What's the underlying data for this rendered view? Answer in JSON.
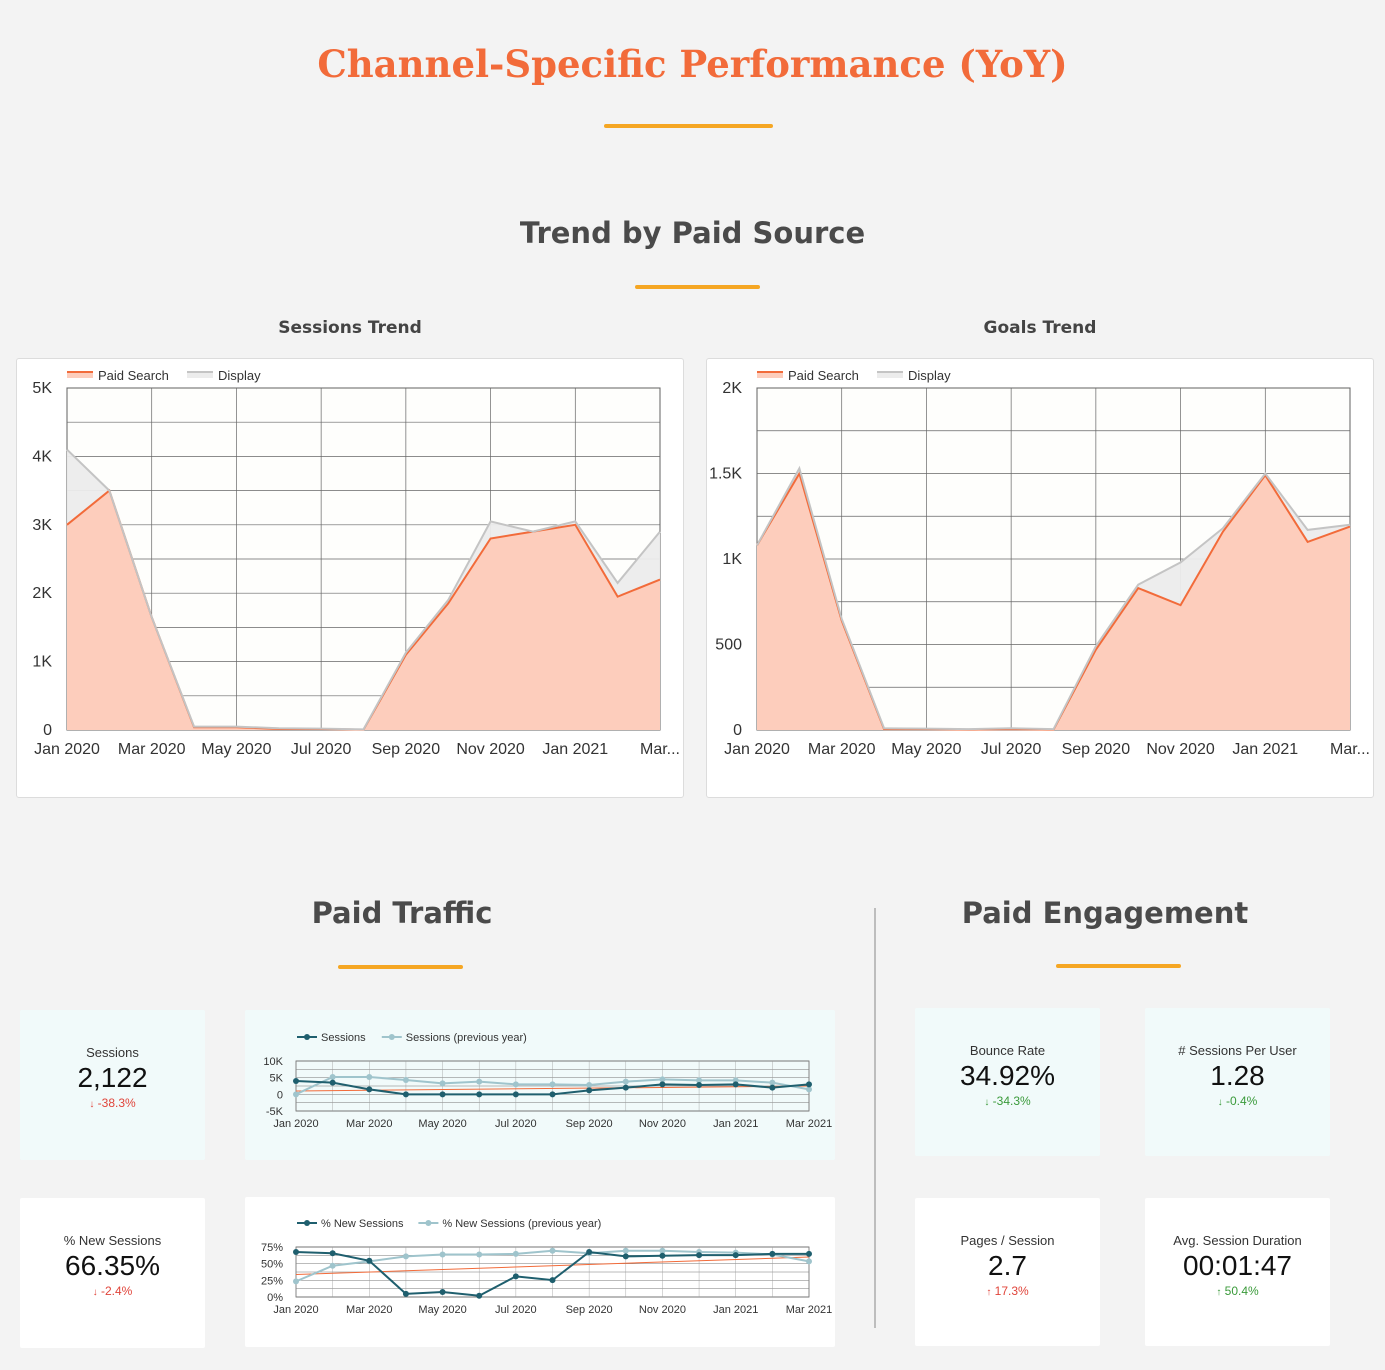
{
  "page": {
    "title": "Channel-Specific Performance (YoY)",
    "section_trend": "Trend by Paid Source",
    "section_traffic": "Paid Traffic",
    "section_engagement": "Paid Engagement"
  },
  "colors": {
    "accent": "#f26b3a",
    "underline": "#f5a623",
    "series_primary": "#1f5f6e",
    "series_prev": "#9fc4cc"
  },
  "kpis": {
    "sessions": {
      "label": "Sessions",
      "value": "2,122",
      "change": "-38.3%",
      "arrow": "↓"
    },
    "new_sessions": {
      "label": "% New Sessions",
      "value": "66.35%",
      "change": "-2.4%",
      "arrow": "↓"
    },
    "bounce_rate": {
      "label": "Bounce Rate",
      "value": "34.92%",
      "change": "-34.3%",
      "arrow": "↓"
    },
    "sessions_per_user": {
      "label": "# Sessions Per User",
      "value": "1.28",
      "change": "-0.4%",
      "arrow": "↓"
    },
    "pages_session": {
      "label": "Pages / Session",
      "value": "2.7",
      "change": "17.3%",
      "arrow": "↑"
    },
    "avg_duration": {
      "label": "Avg. Session Duration",
      "value": "00:01:47",
      "change": "50.4%",
      "arrow": "↑"
    }
  },
  "chart_data": [
    {
      "id": "sessions_trend",
      "type": "area",
      "title": "Sessions Trend",
      "x": [
        "Jan 2020",
        "Feb 2020",
        "Mar 2020",
        "Apr 2020",
        "May 2020",
        "Jun 2020",
        "Jul 2020",
        "Aug 2020",
        "Sep 2020",
        "Oct 2020",
        "Nov 2020",
        "Dec 2020",
        "Jan 2021",
        "Feb 2021",
        "Mar 2021"
      ],
      "xticks": [
        "Jan 2020",
        "Mar 2020",
        "May 2020",
        "Jul 2020",
        "Sep 2020",
        "Nov 2020",
        "Jan 2021",
        "Mar..."
      ],
      "yticks": [
        "0",
        "1K",
        "2K",
        "3K",
        "4K",
        "5K"
      ],
      "ylim": [
        0,
        5000
      ],
      "series": [
        {
          "name": "Paid Search",
          "values": [
            3000,
            3500,
            1650,
            40,
            40,
            15,
            15,
            5,
            1100,
            1850,
            2800,
            2900,
            3000,
            1950,
            2200
          ]
        },
        {
          "name": "Display",
          "values": [
            4100,
            3500,
            1650,
            50,
            50,
            25,
            20,
            10,
            1130,
            1900,
            3050,
            2900,
            3050,
            2150,
            2900
          ]
        }
      ]
    },
    {
      "id": "goals_trend",
      "type": "area",
      "title": "Goals Trend",
      "x": [
        "Jan 2020",
        "Feb 2020",
        "Mar 2020",
        "Apr 2020",
        "May 2020",
        "Jun 2020",
        "Jul 2020",
        "Aug 2020",
        "Sep 2020",
        "Oct 2020",
        "Nov 2020",
        "Dec 2020",
        "Jan 2021",
        "Feb 2021",
        "Mar 2021"
      ],
      "xticks": [
        "Jan 2020",
        "Mar 2020",
        "May 2020",
        "Jul 2020",
        "Sep 2020",
        "Nov 2020",
        "Jan 2021",
        "Mar..."
      ],
      "yticks": [
        "0",
        "500",
        "1K",
        "1.5K",
        "2K"
      ],
      "ylim": [
        0,
        2000
      ],
      "series": [
        {
          "name": "Paid Search",
          "values": [
            1080,
            1500,
            640,
            5,
            5,
            2,
            5,
            2,
            470,
            830,
            730,
            1160,
            1490,
            1100,
            1190
          ]
        },
        {
          "name": "Display",
          "values": [
            1080,
            1530,
            650,
            10,
            8,
            5,
            10,
            5,
            490,
            850,
            980,
            1180,
            1500,
            1170,
            1200
          ]
        }
      ]
    },
    {
      "id": "paid_traffic_sessions",
      "type": "line",
      "x": [
        "Jan 2020",
        "Feb 2020",
        "Mar 2020",
        "Apr 2020",
        "May 2020",
        "Jun 2020",
        "Jul 2020",
        "Aug 2020",
        "Sep 2020",
        "Oct 2020",
        "Nov 2020",
        "Dec 2020",
        "Jan 2021",
        "Feb 2021",
        "Mar 2021"
      ],
      "xticks": [
        "Jan 2020",
        "Mar 2020",
        "May 2020",
        "Jul 2020",
        "Sep 2020",
        "Nov 2020",
        "Jan 2021",
        "Mar 2021"
      ],
      "yticks": [
        "-5K",
        "0",
        "5K",
        "10K"
      ],
      "ylim": [
        -5000,
        10000
      ],
      "series": [
        {
          "name": "Sessions",
          "values": [
            4000,
            3500,
            1500,
            0,
            0,
            0,
            0,
            0,
            1200,
            2000,
            3000,
            2800,
            3000,
            2000,
            3000
          ]
        },
        {
          "name": "Sessions (previous year)",
          "values": [
            0,
            5200,
            5200,
            4300,
            3300,
            3800,
            3000,
            3000,
            2800,
            3800,
            4500,
            4200,
            4200,
            3500,
            1500
          ]
        }
      ],
      "trend_line": [
        1000,
        2500
      ]
    },
    {
      "id": "paid_traffic_new_sessions",
      "type": "line",
      "x": [
        "Jan 2020",
        "Feb 2020",
        "Mar 2020",
        "Apr 2020",
        "May 2020",
        "Jun 2020",
        "Jul 2020",
        "Aug 2020",
        "Sep 2020",
        "Oct 2020",
        "Nov 2020",
        "Dec 2020",
        "Jan 2021",
        "Feb 2021",
        "Mar 2021"
      ],
      "xticks": [
        "Jan 2020",
        "Mar 2020",
        "May 2020",
        "Jul 2020",
        "Sep 2020",
        "Nov 2020",
        "Jan 2021",
        "Mar 2021"
      ],
      "yticks": [
        "0%",
        "25%",
        "50%",
        "75%"
      ],
      "ylim": [
        0,
        80
      ],
      "series": [
        {
          "name": "% New Sessions",
          "values": [
            72,
            70,
            58,
            5,
            8,
            2,
            33,
            27,
            72,
            65,
            66,
            67,
            67,
            69,
            69
          ]
        },
        {
          "name": "% New Sessions (previous year)",
          "values": [
            25,
            50,
            57,
            65,
            68,
            68,
            69,
            74,
            70,
            74,
            74,
            72,
            71,
            68,
            57
          ]
        }
      ],
      "trend_line": [
        36,
        64
      ]
    }
  ]
}
